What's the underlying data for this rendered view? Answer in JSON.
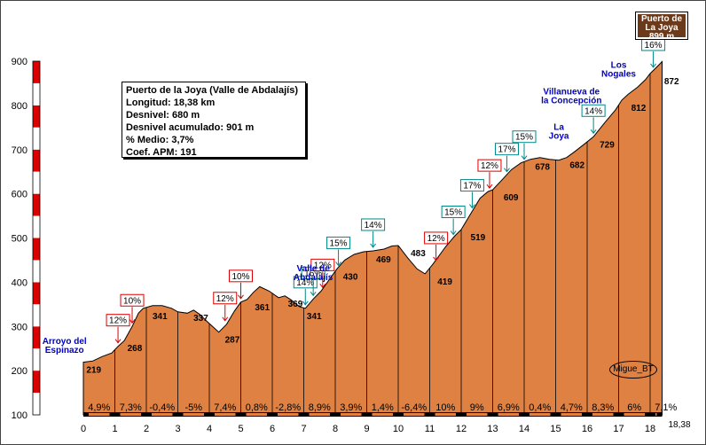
{
  "info_box": {
    "title": "Puerto de la Joya (Valle de Abdalajís)",
    "length": "Longitud: 18,38 km",
    "elevation_gain": "Desnivel: 680 m",
    "cumulative_gain": "Desnivel acumulado: 901 m",
    "average_grade": "% Medio: 3,7%",
    "apm_coefficient": "Coef. APM: 191"
  },
  "summit_label": [
    "Puerto de",
    "La Joya",
    "899 m"
  ],
  "signature": "Migue_BT",
  "colors": {
    "fill": "#df8142",
    "axis_red": "#dd0000",
    "grade_box_red": "#dd0000",
    "grade_box_teal": "#008888",
    "blue_label": "#0000cc"
  },
  "chart_data": {
    "type": "area",
    "xlim": [
      0,
      18.38
    ],
    "ylim": [
      100,
      900
    ],
    "x_ticks": [
      "0",
      "1",
      "2",
      "3",
      "4",
      "5",
      "6",
      "7",
      "8",
      "9",
      "10",
      "11",
      "12",
      "13",
      "14",
      "15",
      "16",
      "17",
      "18"
    ],
    "x_end_label": "18,38",
    "y_ticks": [
      "100",
      "200",
      "300",
      "400",
      "500",
      "600",
      "700",
      "800",
      "900"
    ],
    "profile": [
      [
        0,
        219
      ],
      [
        0.3,
        222
      ],
      [
        0.6,
        232
      ],
      [
        0.9,
        240
      ],
      [
        1.1,
        255
      ],
      [
        1.3,
        268
      ],
      [
        1.55,
        300
      ],
      [
        1.75,
        330
      ],
      [
        1.9,
        341
      ],
      [
        2.2,
        347
      ],
      [
        2.5,
        347
      ],
      [
        2.8,
        341
      ],
      [
        3.0,
        333
      ],
      [
        3.3,
        330
      ],
      [
        3.5,
        337
      ],
      [
        3.7,
        327
      ],
      [
        3.9,
        313
      ],
      [
        4.1,
        300
      ],
      [
        4.3,
        287
      ],
      [
        4.55,
        305
      ],
      [
        4.8,
        335
      ],
      [
        5.0,
        355
      ],
      [
        5.2,
        361
      ],
      [
        5.4,
        377
      ],
      [
        5.6,
        390
      ],
      [
        5.9,
        380
      ],
      [
        6.2,
        365
      ],
      [
        6.4,
        369
      ],
      [
        6.6,
        360
      ],
      [
        6.85,
        345
      ],
      [
        7.05,
        341
      ],
      [
        7.3,
        362
      ],
      [
        7.55,
        380
      ],
      [
        7.8,
        405
      ],
      [
        8.05,
        430
      ],
      [
        8.3,
        450
      ],
      [
        8.6,
        463
      ],
      [
        8.9,
        469
      ],
      [
        9.2,
        471
      ],
      [
        9.55,
        475
      ],
      [
        9.8,
        482
      ],
      [
        10.0,
        483
      ],
      [
        10.3,
        455
      ],
      [
        10.6,
        430
      ],
      [
        10.85,
        419
      ],
      [
        11.1,
        441
      ],
      [
        11.5,
        480
      ],
      [
        11.8,
        505
      ],
      [
        12.0,
        519
      ],
      [
        12.3,
        555
      ],
      [
        12.6,
        590
      ],
      [
        12.85,
        605
      ],
      [
        13.0,
        609
      ],
      [
        13.3,
        632
      ],
      [
        13.6,
        655
      ],
      [
        13.9,
        670
      ],
      [
        14.2,
        678
      ],
      [
        14.5,
        682
      ],
      [
        14.8,
        678
      ],
      [
        15.1,
        676
      ],
      [
        15.35,
        682
      ],
      [
        15.6,
        695
      ],
      [
        15.9,
        712
      ],
      [
        16.2,
        729
      ],
      [
        16.55,
        760
      ],
      [
        16.9,
        790
      ],
      [
        17.1,
        812
      ],
      [
        17.3,
        825
      ],
      [
        17.6,
        841
      ],
      [
        17.85,
        858
      ],
      [
        18.0,
        872
      ],
      [
        18.2,
        886
      ],
      [
        18.38,
        899
      ]
    ],
    "segment_grades": [
      "4,9%",
      "7,3%",
      "-0,4%",
      "-5%",
      "7,4%",
      "0,8%",
      "-2,8%",
      "8,9%",
      "3,9%",
      "1,4%",
      "-6,4%",
      "10%",
      "9%",
      "6,9%",
      "0,4%",
      "4,7%",
      "8,3%",
      "6%",
      "7,1%"
    ],
    "point_labels": [
      {
        "x": 0.05,
        "y": 219,
        "text": "219"
      },
      {
        "x": 1.35,
        "y": 268,
        "text": "268"
      },
      {
        "x": 2.15,
        "y": 341,
        "text": "341"
      },
      {
        "x": 3.45,
        "y": 337,
        "text": "337"
      },
      {
        "x": 4.45,
        "y": 287,
        "text": "287"
      },
      {
        "x": 5.4,
        "y": 361,
        "text": "361"
      },
      {
        "x": 6.45,
        "y": 369,
        "text": "369"
      },
      {
        "x": 7.05,
        "y": 341,
        "text": "341"
      },
      {
        "x": 8.2,
        "y": 430,
        "text": "430"
      },
      {
        "x": 9.25,
        "y": 469,
        "text": "469"
      },
      {
        "x": 10.35,
        "y": 483,
        "text": "483"
      },
      {
        "x": 11.2,
        "y": 419,
        "text": "419"
      },
      {
        "x": 12.25,
        "y": 519,
        "text": "519"
      },
      {
        "x": 13.3,
        "y": 609,
        "text": "609"
      },
      {
        "x": 14.3,
        "y": 678,
        "text": "678"
      },
      {
        "x": 15.4,
        "y": 682,
        "text": "682"
      },
      {
        "x": 16.35,
        "y": 729,
        "text": "729"
      },
      {
        "x": 17.35,
        "y": 812,
        "text": "812"
      },
      {
        "x": 18.4,
        "y": 872,
        "text": "872"
      }
    ],
    "grade_markers": [
      {
        "x": 1.1,
        "y": 255,
        "text": "12%",
        "style": "red"
      },
      {
        "x": 1.55,
        "y": 300,
        "text": "10%",
        "style": "red"
      },
      {
        "x": 4.5,
        "y": 305,
        "text": "12%",
        "style": "red"
      },
      {
        "x": 5.0,
        "y": 355,
        "text": "10%",
        "style": "red"
      },
      {
        "x": 7.05,
        "y": 341,
        "text": "14%",
        "style": "teal"
      },
      {
        "x": 7.3,
        "y": 362,
        "text": "16%",
        "style": "teal"
      },
      {
        "x": 7.6,
        "y": 380,
        "text": "12%",
        "style": "red"
      },
      {
        "x": 8.1,
        "y": 430,
        "text": "15%",
        "style": "teal"
      },
      {
        "x": 9.2,
        "y": 471,
        "text": "14%",
        "style": "teal"
      },
      {
        "x": 11.2,
        "y": 441,
        "text": "12%",
        "style": "red"
      },
      {
        "x": 11.75,
        "y": 500,
        "text": "15%",
        "style": "teal"
      },
      {
        "x": 12.35,
        "y": 560,
        "text": "17%",
        "style": "teal"
      },
      {
        "x": 12.9,
        "y": 605,
        "text": "12%",
        "style": "red"
      },
      {
        "x": 13.45,
        "y": 642,
        "text": "17%",
        "style": "teal"
      },
      {
        "x": 14.0,
        "y": 670,
        "text": "15%",
        "style": "teal"
      },
      {
        "x": 16.2,
        "y": 729,
        "text": "14%",
        "style": "teal"
      },
      {
        "x": 18.1,
        "y": 878,
        "text": "16%",
        "style": "teal"
      }
    ],
    "place_labels": [
      {
        "x": -0.6,
        "y": 260,
        "lines": [
          "Arroyo del",
          "Espinazo"
        ]
      },
      {
        "x": 7.3,
        "y": 425,
        "lines": [
          "Valle de",
          "Abdalajís"
        ]
      },
      {
        "x": 15.5,
        "y": 825,
        "lines": [
          "Villanueva de",
          "la Concepción"
        ]
      },
      {
        "x": 17.0,
        "y": 885,
        "lines": [
          "Los",
          "Nogales"
        ]
      },
      {
        "x": 15.1,
        "y": 745,
        "lines": [
          "La",
          "Joya"
        ]
      }
    ]
  }
}
